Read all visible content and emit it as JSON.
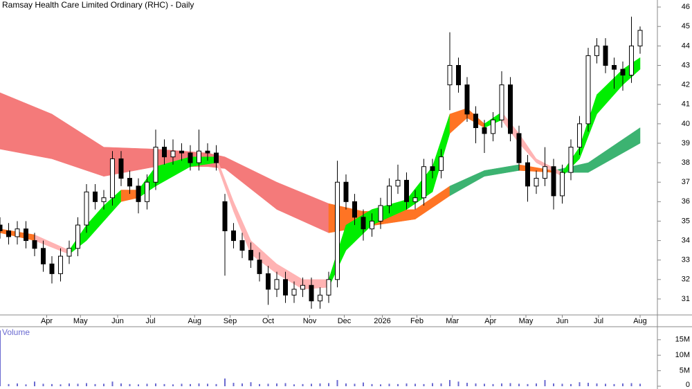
{
  "chart_data": {
    "type": "candlestick",
    "title": "Ramsay Health Care Limited Ordinary (RHC) - Daily",
    "x": [
      0,
      1,
      2,
      3,
      4,
      5,
      6,
      7,
      8,
      9,
      10,
      11,
      12,
      13,
      14,
      15,
      16,
      17,
      18,
      19,
      20,
      21,
      22,
      23,
      24,
      25,
      26,
      27,
      28,
      29,
      30,
      31,
      32,
      33,
      34,
      35,
      36,
      37,
      38,
      39,
      40,
      41,
      42,
      43,
      44,
      45,
      46,
      47,
      48,
      49,
      50,
      51,
      52,
      53,
      54,
      55,
      56,
      57,
      58,
      59,
      60,
      61,
      62,
      63,
      64,
      65,
      66,
      67,
      68,
      69,
      70,
      71,
      72,
      73,
      74
    ],
    "open": [
      34.8,
      34.5,
      34.2,
      34.6,
      34.0,
      33.6,
      32.8,
      32.3,
      33.2,
      33.6,
      34.8,
      36.5,
      36.0,
      36.2,
      38.2,
      37.2,
      36.8,
      36.0,
      37.0,
      38.8,
      38.3,
      38.6,
      38.5,
      38.0,
      38.6,
      38.5,
      36.0,
      34.5,
      34.0,
      33.5,
      33.0,
      32.3,
      31.5,
      32.0,
      31.2,
      31.5,
      31.7,
      30.9,
      31.2,
      32.0,
      37.0,
      36.0,
      35.2,
      34.6,
      35.0,
      35.8,
      36.8,
      37.1,
      36.0,
      36.2,
      37.8,
      37.6,
      42.0,
      43.0,
      42.0,
      40.5,
      39.8,
      39.5,
      40.2,
      42.0,
      39.5,
      38.0,
      36.8,
      37.2,
      37.8,
      36.3,
      37.5,
      38.8,
      40.0,
      43.5,
      44.0,
      43.0,
      42.8,
      42.5,
      44.0
    ],
    "high": [
      35.2,
      34.9,
      35.0,
      35.0,
      34.4,
      34.0,
      33.2,
      33.6,
      34.0,
      35.2,
      36.9,
      36.9,
      36.6,
      38.6,
      38.6,
      37.6,
      37.2,
      37.4,
      39.7,
      39.2,
      39.2,
      39.0,
      38.9,
      39.7,
      39.0,
      38.9,
      36.4,
      34.9,
      34.4,
      33.9,
      33.4,
      32.7,
      32.4,
      32.4,
      31.9,
      32.1,
      32.1,
      31.6,
      32.4,
      38.1,
      37.4,
      36.4,
      35.6,
      35.4,
      36.2,
      37.2,
      37.9,
      37.5,
      36.6,
      38.2,
      38.2,
      38.7,
      44.7,
      43.4,
      42.4,
      40.9,
      40.2,
      40.6,
      42.7,
      42.4,
      39.9,
      38.4,
      37.6,
      38.8,
      38.2,
      37.9,
      39.2,
      40.4,
      43.9,
      44.4,
      44.4,
      43.4,
      43.2,
      45.5,
      45.0
    ],
    "low": [
      34.1,
      33.8,
      33.8,
      33.6,
      33.2,
      32.4,
      31.8,
      31.9,
      32.8,
      33.2,
      34.4,
      35.6,
      35.6,
      35.8,
      36.8,
      36.4,
      35.4,
      35.6,
      36.6,
      37.9,
      37.9,
      38.1,
      37.6,
      37.6,
      38.1,
      37.6,
      32.2,
      33.6,
      33.1,
      32.6,
      31.9,
      30.7,
      31.1,
      30.8,
      30.8,
      31.1,
      30.5,
      30.5,
      30.8,
      31.6,
      35.6,
      34.8,
      34.0,
      34.2,
      34.6,
      35.4,
      36.4,
      35.6,
      35.6,
      35.8,
      37.2,
      37.2,
      40.7,
      41.6,
      40.1,
      39.0,
      38.5,
      39.1,
      39.8,
      39.1,
      37.6,
      36.0,
      36.4,
      36.8,
      35.6,
      35.9,
      37.1,
      38.4,
      39.6,
      43.1,
      42.6,
      41.8,
      41.7,
      42.1,
      43.6
    ],
    "close": [
      34.5,
      34.2,
      34.6,
      34.0,
      33.6,
      32.8,
      32.3,
      33.2,
      33.6,
      34.8,
      36.5,
      36.0,
      36.2,
      38.2,
      37.2,
      36.8,
      36.0,
      37.0,
      38.8,
      38.3,
      38.6,
      38.5,
      38.0,
      38.6,
      38.5,
      38.0,
      34.5,
      34.0,
      33.5,
      33.0,
      32.3,
      31.5,
      32.0,
      31.2,
      31.5,
      31.7,
      30.9,
      31.2,
      32.0,
      37.0,
      36.0,
      35.2,
      34.6,
      35.0,
      35.8,
      36.8,
      37.1,
      36.0,
      36.2,
      37.8,
      37.6,
      38.3,
      43.0,
      42.0,
      40.5,
      39.8,
      39.5,
      40.2,
      42.0,
      39.5,
      38.0,
      36.8,
      37.2,
      37.8,
      36.3,
      37.5,
      38.8,
      40.0,
      43.5,
      44.0,
      43.0,
      42.8,
      42.5,
      44.0,
      44.8
    ],
    "up_color": "#ffffff",
    "down_color": "#000000",
    "xlim": [
      0,
      76
    ],
    "ylim": [
      30.18,
      46.36
    ],
    "yticks": [
      31,
      32,
      33,
      34,
      35,
      36,
      37,
      38,
      39,
      40,
      41,
      42,
      43,
      44,
      45,
      46
    ],
    "xticks": [
      {
        "value": 5.4,
        "label": "Apr"
      },
      {
        "value": 9.3,
        "label": "May"
      },
      {
        "value": 13.6,
        "label": "Jun"
      },
      {
        "value": 17.4,
        "label": "Jul"
      },
      {
        "value": 22.5,
        "label": "Aug"
      },
      {
        "value": 26.6,
        "label": "Sep"
      },
      {
        "value": 31,
        "label": "Oct"
      },
      {
        "value": 35.8,
        "label": "Nov"
      },
      {
        "value": 39.8,
        "label": "Dec"
      },
      {
        "value": 44.2,
        "label": "2026"
      },
      {
        "value": 48.2,
        "label": "Feb"
      },
      {
        "value": 52.3,
        "label": "Mar"
      },
      {
        "value": 56.7,
        "label": "Apr"
      },
      {
        "value": 60.8,
        "label": "May"
      },
      {
        "value": 65,
        "label": "Jun"
      },
      {
        "value": 69.2,
        "label": "Jul"
      },
      {
        "value": 74,
        "label": "Aug"
      }
    ],
    "ribbons": [
      {
        "x": [
          0,
          6,
          12,
          18,
          24,
          26,
          32,
          38,
          42,
          48,
          52,
          56,
          60,
          64,
          68,
          74
        ],
        "upper": [
          41.6,
          40.5,
          38.8,
          38.7,
          38.5,
          38.3,
          37.0,
          35.9,
          35.5,
          35.6,
          36.8,
          37.6,
          37.9,
          37.6,
          38.0,
          39.8
        ],
        "lower": [
          38.7,
          38.2,
          37.3,
          37.8,
          37.8,
          37.7,
          35.6,
          34.4,
          34.7,
          35.1,
          36.3,
          37.3,
          37.6,
          37.5,
          37.5,
          39.0
        ],
        "colors": [
          "#f47a7a",
          "#f47a7a",
          "#f47a7a",
          "#f47a7a",
          "#f47a7a",
          "#f47a7a",
          "#f47a7a",
          "#ff7424",
          "#ff7424",
          "#ff7424",
          "#3cb371",
          "#3cb371",
          "#ff7424",
          "#3cb371",
          "#3cb371"
        ]
      },
      {
        "x": [
          0,
          4,
          8,
          10,
          12,
          14,
          16,
          18,
          22,
          25,
          27,
          29,
          32,
          35,
          38,
          40,
          43,
          47,
          50,
          52,
          54,
          56,
          58,
          60,
          62,
          65,
          67,
          69,
          72,
          74
        ],
        "upper": [
          34.6,
          34.3,
          33.5,
          34.8,
          35.8,
          36.6,
          36.6,
          37.8,
          38.3,
          38.3,
          36.0,
          34.0,
          32.8,
          32.0,
          32.0,
          34.8,
          35.6,
          36.1,
          37.8,
          40.5,
          40.8,
          40.0,
          40.6,
          39.5,
          38.2,
          37.5,
          38.8,
          41.5,
          42.8,
          43.4
        ],
        "lower": [
          34.4,
          34.0,
          33.3,
          34.0,
          35.0,
          36.0,
          36.2,
          36.8,
          37.8,
          38.0,
          35.5,
          33.3,
          32.3,
          31.5,
          31.6,
          33.5,
          34.8,
          35.6,
          36.5,
          39.5,
          40.3,
          39.8,
          40.2,
          39.0,
          38.0,
          37.3,
          38.2,
          40.5,
          42.0,
          42.8
        ],
        "colors": [
          "#ff7424",
          "#ffb3b3",
          "#00ee00",
          "#00ee00",
          "#00ee00",
          "#ff7424",
          "#00ee00",
          "#00ee00",
          "#00ee00",
          "#ffb3b3",
          "#ffb3b3",
          "#ffb3b3",
          "#ffb3b3",
          "#ffb3b3",
          "#00ee00",
          "#00ee00",
          "#00ee00",
          "#00ee00",
          "#00ee00",
          "#ff7424",
          "#ff7424",
          "#00ee00",
          "#ffb3b3",
          "#ffb3b3",
          "#ffb3b3",
          "#00ee00",
          "#00ee00",
          "#00ee00",
          "#00ee00"
        ]
      }
    ],
    "volume_panel": {
      "label": "Volume",
      "color": "#6a6ad0",
      "values": [
        18000000,
        700000,
        900000,
        600000,
        1500000,
        800000,
        700000,
        600000,
        900000,
        800000,
        1000000,
        700000,
        800000,
        1500000,
        900000,
        700000,
        600000,
        800000,
        900000,
        700000,
        600000,
        800000,
        700000,
        900000,
        800000,
        700000,
        2500000,
        1100000,
        900000,
        1300000,
        700000,
        800000,
        900000,
        1000000,
        600000,
        700000,
        800000,
        900000,
        1000000,
        2000000,
        900000,
        800000,
        1200000,
        700000,
        600000,
        800000,
        700000,
        900000,
        800000,
        700000,
        1000000,
        900000,
        2000000,
        1500000,
        1100000,
        900000,
        800000,
        700000,
        900000,
        1000000,
        800000,
        700000,
        900000,
        2000000,
        900000,
        800000,
        700000,
        1300000,
        1100000,
        900000,
        800000,
        700000,
        900000,
        1000000,
        800000
      ],
      "ylim": [
        0,
        19200000
      ],
      "yticks": [
        {
          "value": 0,
          "label": "0"
        },
        {
          "value": 5000000,
          "label": "5M"
        },
        {
          "value": 10000000,
          "label": "10M"
        },
        {
          "value": 15000000,
          "label": "15M"
        }
      ]
    }
  }
}
